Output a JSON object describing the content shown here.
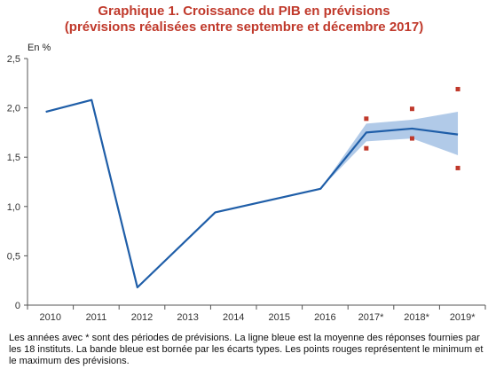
{
  "title": {
    "line1": "Graphique 1. Croissance du PIB en prévisions",
    "line2": "(prévisions réalisées entre septembre et décembre 2017)"
  },
  "footnote": "Les années avec * sont des périodes de prévisions. La ligne bleue est la moyenne des réponses fournies par les 18 instituts. La bande bleue est bornée par les écarts types. Les points rouges représentent le minimum et le maximum des prévisions.",
  "chart_data": {
    "type": "line",
    "ylabel": "En %",
    "xlabel": "",
    "categories": [
      "2010",
      "2011",
      "2012",
      "2013",
      "2014",
      "2015",
      "2016",
      "2017*",
      "2018*",
      "2019*"
    ],
    "ylim": [
      0,
      2.5
    ],
    "yticks": [
      "0",
      "0,5",
      "1,0",
      "1,5",
      "2,0",
      "2,5"
    ],
    "ytick_values": [
      0,
      0.5,
      1.0,
      1.5,
      2.0,
      2.5
    ],
    "grid": false,
    "series": [
      {
        "x": [
          2009.9,
          2010.9,
          2011.9,
          2013.6,
          2015.9,
          2016.9,
          2017.9,
          2018.9
        ],
        "values": [
          1.96,
          2.08,
          0.18,
          0.94,
          1.18,
          1.75,
          1.79,
          1.73
        ]
      }
    ],
    "band": {
      "x": [
        2015.9,
        2016.9,
        2017.9,
        2018.9
      ],
      "lower": [
        1.18,
        1.66,
        1.69,
        1.52
      ],
      "upper": [
        1.18,
        1.84,
        1.88,
        1.96
      ]
    },
    "points": {
      "x": [
        2016.9,
        2016.9,
        2017.9,
        2017.9,
        2018.9,
        2018.9
      ],
      "values": [
        1.89,
        1.59,
        1.99,
        1.69,
        2.19,
        1.39
      ]
    },
    "colors": {
      "line": "#1f5ea8",
      "band": "#a9c4e6",
      "points": "#c0392b",
      "axis": "#555555"
    }
  }
}
